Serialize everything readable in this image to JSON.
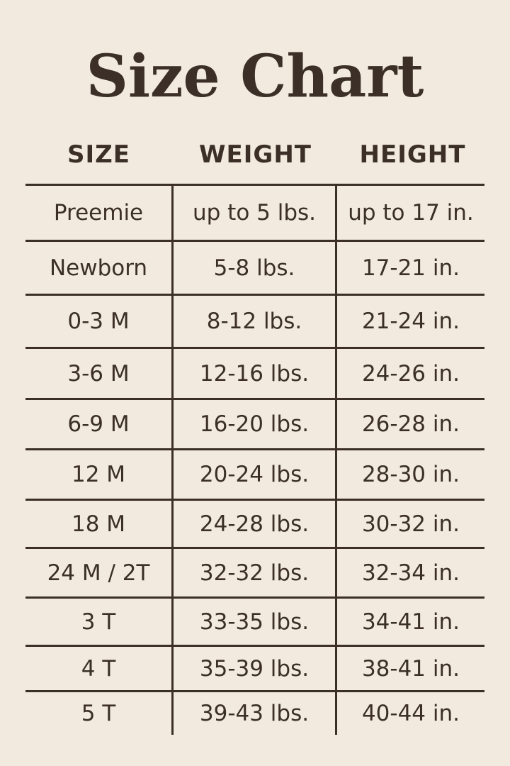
{
  "title": "Size Chart",
  "headers": [
    "SIZE",
    "WEIGHT",
    "HEIGHT"
  ],
  "rows": [
    [
      "Preemie",
      "up to 5 lbs.",
      "up to 17 in."
    ],
    [
      "Newborn",
      "5-8 lbs.",
      "17-21 in."
    ],
    [
      "0-3 M",
      "8-12 lbs.",
      "21-24 in."
    ],
    [
      "3-6 M",
      "12-16 lbs.",
      "24-26 in."
    ],
    [
      "6-9 M",
      "16-20 lbs.",
      "26-28 in."
    ],
    [
      "12 M",
      "20-24 lbs.",
      "28-30 in."
    ],
    [
      "18 M",
      "24-28 lbs.",
      "30-32 in."
    ],
    [
      "24 M / 2T",
      "32-32 lbs.",
      "32-34 in."
    ],
    [
      "3 T",
      "33-35 lbs.",
      "34-41 in."
    ],
    [
      "4 T",
      "35-39 lbs.",
      "38-41 in."
    ],
    [
      "5 T",
      "39-43 lbs.",
      "40-44 in."
    ]
  ],
  "colors": {
    "background": "#f2eadf",
    "text": "#3b2f27"
  }
}
